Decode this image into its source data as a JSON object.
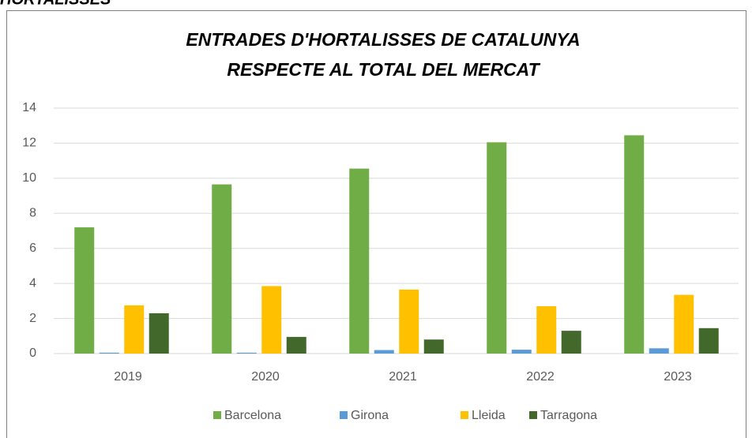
{
  "page_header": "HORTALISSES",
  "chart_data": {
    "type": "bar",
    "title": [
      "ENTRADES D'HORTALISSES DE CATALUNYA",
      "RESPECTE AL TOTAL DEL MERCAT"
    ],
    "categories": [
      "2019",
      "2020",
      "2021",
      "2022",
      "2023"
    ],
    "series": [
      {
        "name": "Barcelona",
        "color": "#70ad47",
        "values": [
          7.2,
          9.65,
          10.55,
          12.05,
          12.45
        ]
      },
      {
        "name": "Girona",
        "color": "#5b9bd5",
        "values": [
          0.05,
          0.05,
          0.2,
          0.22,
          0.3
        ]
      },
      {
        "name": "Lleida",
        "color": "#ffc000",
        "values": [
          2.75,
          3.85,
          3.65,
          2.7,
          3.35
        ]
      },
      {
        "name": "Tarragona",
        "color": "#43682b",
        "values": [
          2.3,
          0.95,
          0.8,
          1.3,
          1.45
        ]
      }
    ],
    "ylim": [
      0,
      14
    ],
    "yticks": [
      0,
      2,
      4,
      6,
      8,
      10,
      12,
      14
    ],
    "grid": true,
    "legend": "bottom"
  }
}
